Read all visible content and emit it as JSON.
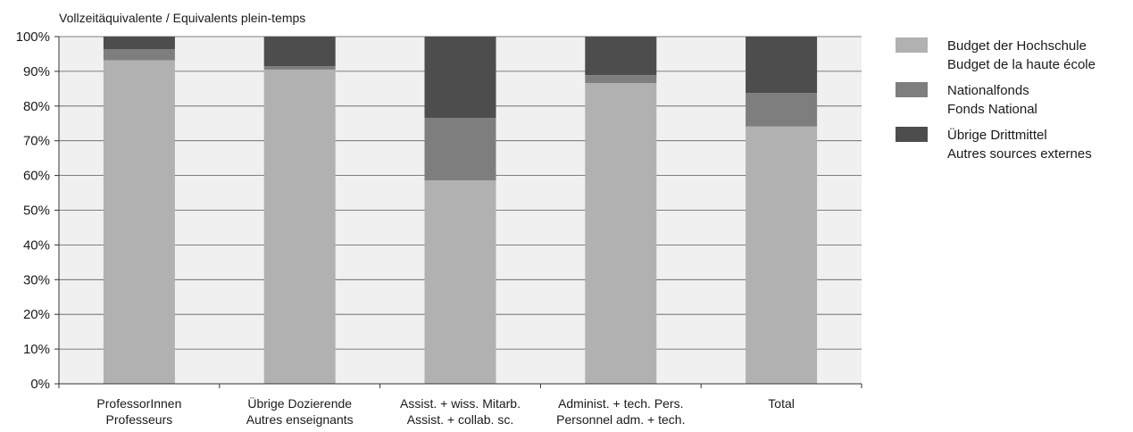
{
  "chart_data": {
    "type": "bar",
    "stacked": true,
    "percent": true,
    "title": "Vollzeitäquivalente / Equivalents plein-temps",
    "xlabel": "",
    "ylabel": "",
    "ylim": [
      0,
      100
    ],
    "yticks": [
      "0%",
      "10%",
      "20%",
      "30%",
      "40%",
      "50%",
      "60%",
      "70%",
      "80%",
      "90%",
      "100%"
    ],
    "grid": true,
    "legend_position": "right",
    "categories": [
      [
        "ProfessorInnen",
        "Professeurs"
      ],
      [
        "Übrige Dozierende",
        "Autres enseignants"
      ],
      [
        "Assist. + wiss. Mitarb.",
        "Assist. + collab. sc."
      ],
      [
        "Administ. + tech. Pers.",
        "Personnel adm. + tech."
      ],
      [
        "Total",
        ""
      ]
    ],
    "series": [
      {
        "name": [
          "Budget der Hochschule",
          "Budget de la haute école"
        ],
        "color": "#b1b1b1",
        "values": [
          93.2,
          90.5,
          58.6,
          86.6,
          74.1
        ]
      },
      {
        "name": [
          "Nationalfonds",
          "Fonds National"
        ],
        "color": "#7e7e7e",
        "values": [
          3.2,
          1.0,
          18.0,
          2.3,
          9.7
        ]
      },
      {
        "name": [
          "Übrige Drittmittel",
          "Autres sources externes"
        ],
        "color": "#4d4d4d",
        "values": [
          3.6,
          8.5,
          23.4,
          11.1,
          16.2
        ]
      }
    ]
  }
}
